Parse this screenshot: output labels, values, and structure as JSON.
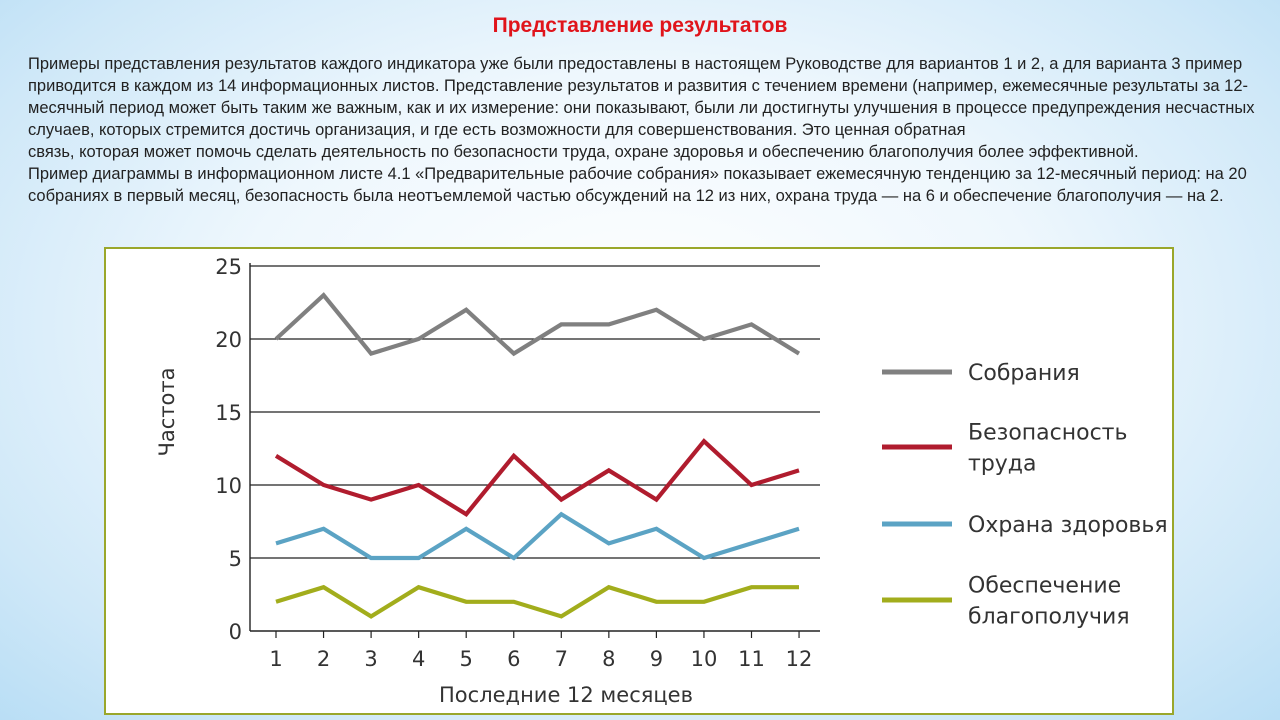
{
  "slide": {
    "title": "Представление результатов",
    "paragraphs": [
      "Примеры представления результатов каждого индикатора уже были предоставлены в настоящем Руководстве для вариантов 1 и 2, а для варианта 3 пример приводится в каждом из 14 информационных листов. Представление результатов и развития с течением времени (например, ежемесячные результаты за 12-месячный период может быть таким же важным, как и их измерение: они показывают, были ли достигнуты улучшения в процессе предупреждения несчастных случаев, которых стремится достичь организация, и где есть возможности для совершенствования. Это ценная обратная",
      "связь, которая может помочь сделать деятельность по безопасности труда, охране здоровья и обеспечению благополучия более эффективной.",
      "Пример диаграммы в информационном листе 4.1 «Предварительные рабочие собрания» показывает ежемесячную тенденцию за 12-месячный период: на 20 собраниях в первый месяц, безопасность была неотъемлемой частью обсуждений на 12 из них, охрана труда — на 6 и обеспечение благополучия — на 2."
    ]
  },
  "chart_data": {
    "type": "line",
    "x": [
      1,
      2,
      3,
      4,
      5,
      6,
      7,
      8,
      9,
      10,
      11,
      12
    ],
    "x_tick_labels": [
      "1",
      "2",
      "3",
      "4",
      "5",
      "6",
      "7",
      "8",
      "9",
      "10",
      "11",
      "12"
    ],
    "y_tick_labels": [
      "0",
      "5",
      "10",
      "15",
      "20",
      "25"
    ],
    "y_ticks": [
      0,
      5,
      10,
      15,
      20,
      25
    ],
    "ylim": [
      0,
      25
    ],
    "xlabel": "Последние 12 месяцев",
    "ylabel": "Частота",
    "grid": "horizontal",
    "legend_position": "right",
    "series": [
      {
        "name": "Собрания",
        "legend_lines": [
          "Собрания"
        ],
        "color": "#808080",
        "values": [
          20,
          23,
          19,
          20,
          22,
          19,
          21,
          21,
          22,
          20,
          21,
          19
        ]
      },
      {
        "name": "Безопасность труда",
        "legend_lines": [
          "Безопасность",
          "труда"
        ],
        "color": "#b01c2e",
        "values": [
          12,
          10,
          9,
          10,
          8,
          12,
          9,
          11,
          9,
          13,
          10,
          11
        ]
      },
      {
        "name": "Охрана здоровья",
        "legend_lines": [
          "Охрана здоровья"
        ],
        "color": "#5ba3c4",
        "values": [
          6,
          7,
          5,
          5,
          7,
          5,
          8,
          6,
          7,
          5,
          6,
          7
        ]
      },
      {
        "name": "Обеспечение благополучия",
        "legend_lines": [
          "Обеспечение",
          "благополучия"
        ],
        "color": "#a2ad1c",
        "values": [
          2,
          3,
          1,
          3,
          2,
          2,
          1,
          3,
          2,
          2,
          3,
          3
        ]
      }
    ]
  }
}
